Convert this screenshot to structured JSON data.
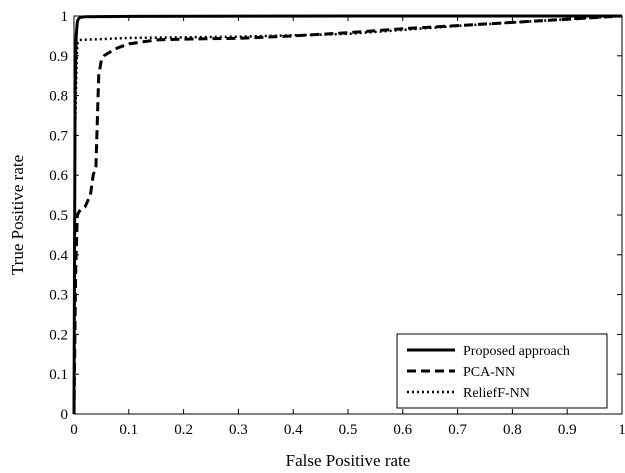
{
  "chart_data": {
    "type": "line",
    "title": "",
    "xlabel": "False Positive rate",
    "ylabel": "True Positive rate",
    "xlim": [
      0,
      1
    ],
    "ylim": [
      0,
      1
    ],
    "xticks": [
      0,
      0.1,
      0.2,
      0.3,
      0.4,
      0.5,
      0.6,
      0.7,
      0.8,
      0.9,
      1
    ],
    "yticks": [
      0,
      0.1,
      0.2,
      0.3,
      0.4,
      0.5,
      0.6,
      0.7,
      0.8,
      0.9,
      1
    ],
    "xtick_labels": [
      "0",
      "0.1",
      "0.2",
      "0.3",
      "0.4",
      "0.5",
      "0.6",
      "0.7",
      "0.8",
      "0.9",
      "1"
    ],
    "ytick_labels": [
      "0",
      "0.1",
      "0.2",
      "0.3",
      "0.4",
      "0.5",
      "0.6",
      "0.7",
      "0.8",
      "0.9",
      "1"
    ],
    "grid": false,
    "legend_position": "bottom-right",
    "series": [
      {
        "name": "Proposed approach",
        "style": "solid",
        "color": "#000000",
        "x": [
          0,
          0.002,
          0.004,
          0.006,
          0.008,
          0.012,
          0.02,
          0.1,
          0.5,
          1
        ],
        "y": [
          0,
          0.8,
          0.95,
          0.985,
          0.993,
          0.997,
          0.998,
          0.999,
          1.0,
          1.0
        ]
      },
      {
        "name": "PCA-NN",
        "style": "dashed",
        "color": "#000000",
        "x": [
          0,
          0.003,
          0.006,
          0.01,
          0.02,
          0.03,
          0.035,
          0.04,
          0.045,
          0.05,
          0.055,
          0.06,
          0.08,
          0.1,
          0.15,
          0.2,
          0.3,
          0.4,
          0.5,
          0.6,
          0.7,
          0.8,
          0.9,
          1
        ],
        "y": [
          0,
          0.35,
          0.5,
          0.51,
          0.52,
          0.55,
          0.6,
          0.62,
          0.85,
          0.89,
          0.9,
          0.905,
          0.92,
          0.93,
          0.94,
          0.942,
          0.944,
          0.95,
          0.958,
          0.968,
          0.976,
          0.984,
          0.992,
          1.0
        ]
      },
      {
        "name": "ReliefF-NN",
        "style": "dotted",
        "color": "#000000",
        "x": [
          0,
          0.001,
          0.002,
          0.004,
          0.006,
          0.01,
          0.05,
          0.1,
          0.3,
          0.5,
          0.7,
          0.9,
          1
        ],
        "y": [
          0,
          0.4,
          0.7,
          0.85,
          0.93,
          0.94,
          0.942,
          0.945,
          0.948,
          0.955,
          0.975,
          0.992,
          1.0
        ]
      }
    ]
  }
}
